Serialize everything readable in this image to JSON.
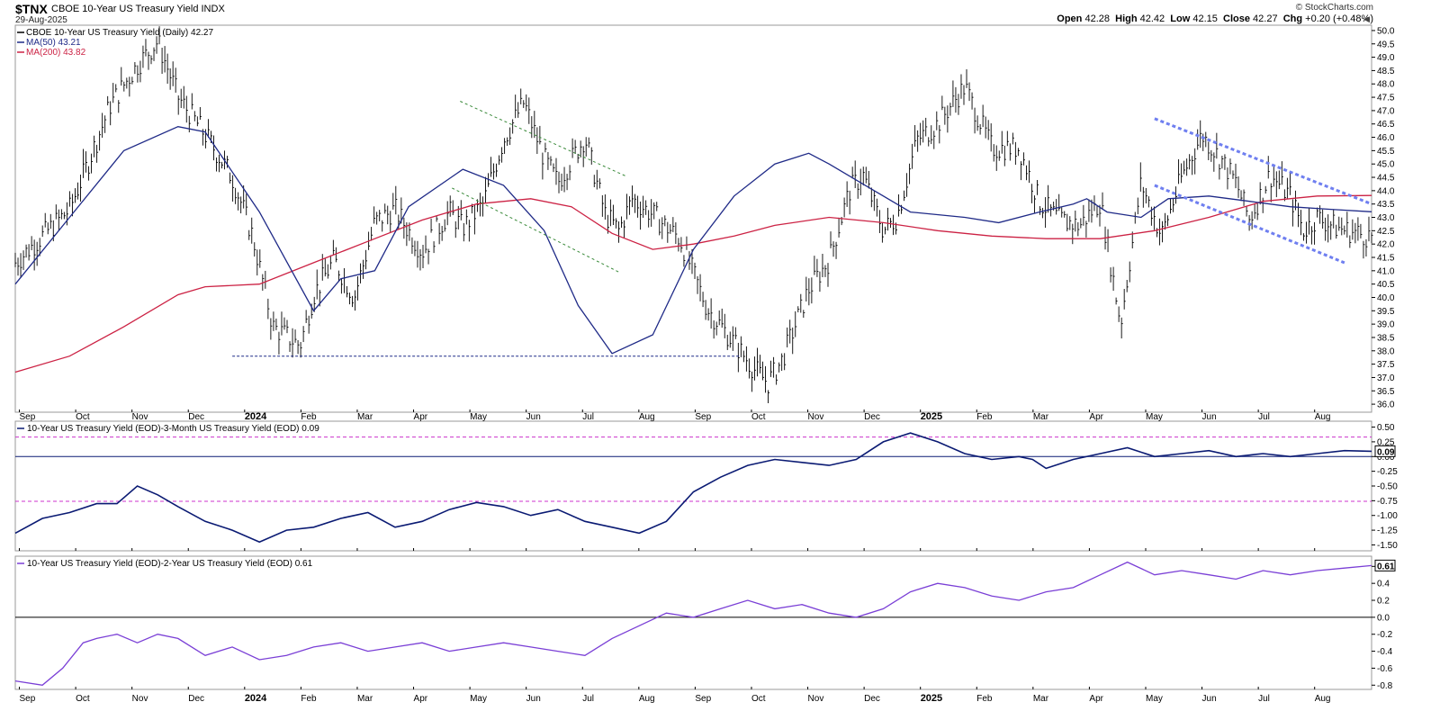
{
  "header": {
    "symbol": "$TNX",
    "name": "CBOE 10-Year US Treasury Yield INDX",
    "date": "29-Aug-2025",
    "logo": "© StockCharts.com",
    "open_label": "Open",
    "open": "42.28",
    "high_label": "High",
    "high": "42.42",
    "low_label": "Low",
    "low": "42.15",
    "close_label": "Close",
    "close": "42.27",
    "chg_label": "Chg",
    "chg": "+0.20 (+0.48%)"
  },
  "colors": {
    "price": "#000000",
    "ma50": "#1f2a87",
    "ma200": "#cc2244",
    "channel": "#6f7ff0",
    "green_channel": "#3a8a3a",
    "spread1": "#0a1a73",
    "spread2": "#7a3fd6",
    "guide": "#cc33cc"
  },
  "chart_data": [
    {
      "type": "line",
      "pane": "price",
      "title": "CBOE 10-Year US Treasury Yield (Daily) 42.27",
      "legend": [
        "CBOE 10-Year US Treasury Yield (Daily) 42.27",
        "MA(50) 43.21",
        "MA(200) 43.82"
      ],
      "x_labels": [
        "Sep",
        "Oct",
        "Nov",
        "Dec",
        "2024",
        "Feb",
        "Mar",
        "Apr",
        "May",
        "Jun",
        "Jul",
        "Aug",
        "Sep",
        "Oct",
        "Nov",
        "Dec",
        "2025",
        "Feb",
        "Mar",
        "Apr",
        "May",
        "Jun",
        "Jul",
        "Aug"
      ],
      "ylim": [
        35.7,
        50.2
      ],
      "y_ticks": [
        "50.0",
        "49.5",
        "49.0",
        "48.5",
        "48.0",
        "47.5",
        "47.0",
        "46.5",
        "46.0",
        "45.5",
        "45.0",
        "44.5",
        "44.0",
        "43.5",
        "43.0",
        "42.5",
        "42.0",
        "41.5",
        "41.0",
        "40.5",
        "40.0",
        "39.5",
        "39.0",
        "38.5",
        "38.0",
        "37.5",
        "37.0",
        "36.5",
        "36.0"
      ],
      "price_x": [
        0,
        0.02,
        0.04,
        0.055,
        0.07,
        0.09,
        0.105,
        0.12,
        0.14,
        0.16,
        0.175,
        0.19,
        0.21,
        0.22,
        0.235,
        0.25,
        0.265,
        0.28,
        0.3,
        0.32,
        0.33,
        0.345,
        0.36,
        0.375,
        0.39,
        0.4,
        0.42,
        0.435,
        0.445,
        0.455,
        0.47,
        0.49,
        0.51,
        0.53,
        0.545,
        0.555,
        0.565,
        0.585,
        0.6,
        0.615,
        0.625,
        0.64,
        0.65,
        0.665,
        0.68,
        0.7,
        0.72,
        0.74,
        0.755,
        0.77,
        0.785,
        0.8,
        0.815,
        0.83,
        0.845,
        0.86,
        0.875,
        0.89,
        0.9,
        0.91,
        0.925,
        0.94,
        0.95,
        0.96,
        0.975,
        0.99,
        1.0
      ],
      "price_y": [
        41.3,
        42.3,
        43.3,
        45.2,
        47.2,
        48.7,
        49.6,
        47.5,
        46.1,
        44.5,
        42.3,
        38.9,
        38.2,
        40.1,
        41.4,
        40.0,
        42.8,
        43.3,
        41.7,
        43.2,
        42.6,
        43.5,
        45.9,
        47.3,
        45.2,
        44.3,
        46.0,
        43.1,
        42.5,
        43.7,
        43.1,
        42.2,
        39.6,
        38.3,
        37.3,
        36.8,
        37.6,
        40.3,
        41.4,
        44.0,
        44.6,
        42.5,
        43.0,
        45.9,
        46.5,
        47.9,
        45.6,
        45.6,
        43.6,
        42.9,
        42.7,
        43.6,
        39.0,
        44.3,
        42.3,
        44.5,
        46.1,
        45.1,
        44.3,
        42.9,
        44.6,
        43.8,
        42.5,
        43.0,
        42.6,
        42.4,
        42.27
      ],
      "ma50_x": [
        0,
        0.04,
        0.08,
        0.12,
        0.14,
        0.18,
        0.22,
        0.24,
        0.265,
        0.29,
        0.33,
        0.36,
        0.39,
        0.415,
        0.44,
        0.47,
        0.5,
        0.53,
        0.56,
        0.585,
        0.6,
        0.63,
        0.66,
        0.7,
        0.725,
        0.755,
        0.78,
        0.79,
        0.805,
        0.83,
        0.85,
        0.88,
        0.91,
        0.94,
        0.97,
        1.0
      ],
      "ma50_y": [
        40.5,
        43.0,
        45.5,
        46.4,
        46.2,
        43.2,
        39.5,
        40.7,
        41.0,
        43.4,
        44.8,
        44.2,
        42.5,
        39.7,
        37.9,
        38.6,
        41.8,
        43.8,
        45.0,
        45.4,
        45.0,
        44.1,
        43.2,
        43.0,
        42.8,
        43.2,
        43.5,
        43.7,
        43.2,
        43.0,
        43.7,
        43.8,
        43.6,
        43.4,
        43.3,
        43.21
      ],
      "ma200_x": [
        0,
        0.04,
        0.08,
        0.12,
        0.14,
        0.18,
        0.22,
        0.26,
        0.3,
        0.34,
        0.38,
        0.41,
        0.44,
        0.47,
        0.5,
        0.53,
        0.56,
        0.6,
        0.64,
        0.68,
        0.72,
        0.76,
        0.8,
        0.84,
        0.88,
        0.92,
        0.96,
        1.0
      ],
      "ma200_y": [
        37.2,
        37.8,
        38.9,
        40.1,
        40.4,
        40.5,
        41.3,
        42.1,
        42.9,
        43.5,
        43.7,
        43.4,
        42.4,
        41.8,
        42.0,
        42.3,
        42.7,
        43.0,
        42.8,
        42.5,
        42.3,
        42.2,
        42.2,
        42.5,
        43.0,
        43.6,
        43.8,
        43.82
      ]
    },
    {
      "type": "line",
      "pane": "spread_10y_3m",
      "title": "10-Year US Treasury Yield (EOD)-3-Month US Treasury Yield (EOD) 0.09",
      "ylim": [
        -1.6,
        0.6
      ],
      "y_ticks": [
        "0.50",
        "0.25",
        "0.00",
        "-0.25",
        "-0.50",
        "-0.75",
        "-1.00",
        "-1.25",
        "-1.50"
      ],
      "last_value": "0.09",
      "x": [
        0,
        0.02,
        0.04,
        0.06,
        0.075,
        0.09,
        0.105,
        0.12,
        0.14,
        0.16,
        0.18,
        0.2,
        0.22,
        0.24,
        0.26,
        0.28,
        0.3,
        0.32,
        0.34,
        0.36,
        0.38,
        0.4,
        0.42,
        0.44,
        0.46,
        0.48,
        0.5,
        0.52,
        0.54,
        0.56,
        0.58,
        0.6,
        0.62,
        0.64,
        0.66,
        0.68,
        0.7,
        0.72,
        0.74,
        0.75,
        0.76,
        0.78,
        0.8,
        0.82,
        0.84,
        0.86,
        0.88,
        0.9,
        0.92,
        0.94,
        0.96,
        0.98,
        1.0
      ],
      "y": [
        -1.3,
        -1.05,
        -0.95,
        -0.8,
        -0.8,
        -0.5,
        -0.65,
        -0.85,
        -1.1,
        -1.25,
        -1.45,
        -1.25,
        -1.2,
        -1.05,
        -0.95,
        -1.2,
        -1.1,
        -0.9,
        -0.78,
        -0.85,
        -1.0,
        -0.9,
        -1.1,
        -1.2,
        -1.3,
        -1.1,
        -0.6,
        -0.35,
        -0.15,
        -0.05,
        -0.1,
        -0.15,
        -0.05,
        0.25,
        0.4,
        0.25,
        0.05,
        -0.05,
        0.0,
        -0.05,
        -0.2,
        -0.05,
        0.05,
        0.15,
        0.0,
        0.05,
        0.1,
        0.0,
        0.05,
        0.0,
        0.05,
        0.1,
        0.09
      ],
      "guides": [
        0.33,
        -0.76
      ],
      "zero": 0.0
    },
    {
      "type": "line",
      "pane": "spread_10y_2y",
      "title": "10-Year US Treasury Yield (EOD)-2-Year US Treasury Yield (EOD) 0.61",
      "ylim": [
        -0.85,
        0.72
      ],
      "y_ticks": [
        "0.6",
        "0.4",
        "0.2",
        "0.0",
        "-0.2",
        "-0.4",
        "-0.6",
        "-0.8"
      ],
      "last_value": "0.61",
      "x": [
        0,
        0.02,
        0.035,
        0.05,
        0.06,
        0.075,
        0.09,
        0.105,
        0.12,
        0.14,
        0.16,
        0.18,
        0.2,
        0.22,
        0.24,
        0.26,
        0.28,
        0.3,
        0.32,
        0.34,
        0.36,
        0.38,
        0.4,
        0.42,
        0.44,
        0.46,
        0.48,
        0.5,
        0.52,
        0.54,
        0.56,
        0.58,
        0.6,
        0.62,
        0.64,
        0.66,
        0.68,
        0.7,
        0.72,
        0.74,
        0.76,
        0.78,
        0.8,
        0.82,
        0.84,
        0.86,
        0.88,
        0.9,
        0.92,
        0.94,
        0.96,
        0.98,
        1.0
      ],
      "y": [
        -0.75,
        -0.8,
        -0.6,
        -0.3,
        -0.25,
        -0.2,
        -0.3,
        -0.2,
        -0.25,
        -0.45,
        -0.35,
        -0.5,
        -0.45,
        -0.35,
        -0.3,
        -0.4,
        -0.35,
        -0.3,
        -0.4,
        -0.35,
        -0.3,
        -0.35,
        -0.4,
        -0.45,
        -0.25,
        -0.1,
        0.05,
        0.0,
        0.1,
        0.2,
        0.1,
        0.15,
        0.05,
        0.0,
        0.1,
        0.3,
        0.4,
        0.35,
        0.25,
        0.2,
        0.3,
        0.35,
        0.5,
        0.65,
        0.5,
        0.55,
        0.5,
        0.45,
        0.55,
        0.5,
        0.55,
        0.58,
        0.61
      ],
      "zero": 0.0
    }
  ]
}
